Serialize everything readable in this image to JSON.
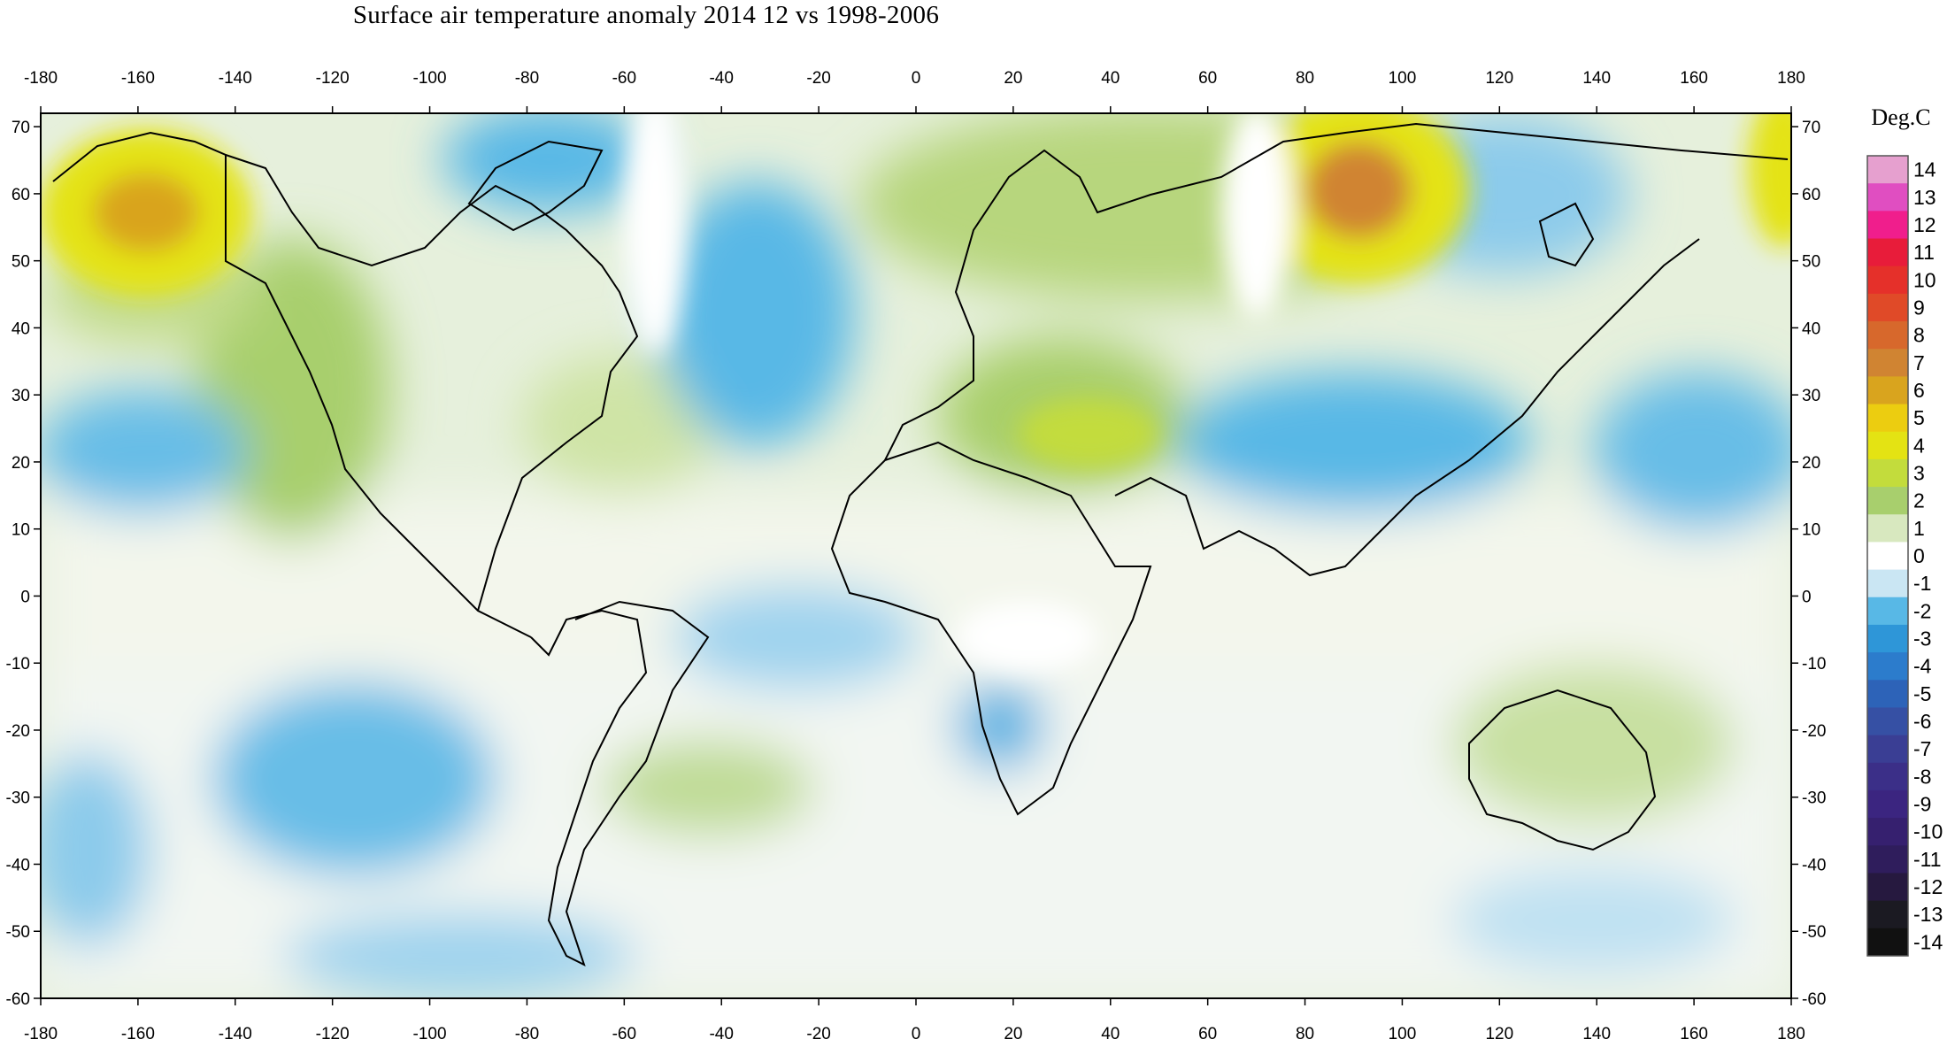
{
  "title": "Surface air temperature anomaly 2014 12 vs 1998-2006",
  "colorbar": {
    "unit_label": "Deg.C",
    "levels": [
      14,
      13,
      12,
      11,
      10,
      9,
      8,
      7,
      6,
      5,
      4,
      3,
      2,
      1,
      0,
      -1,
      -2,
      -3,
      -4,
      -5,
      -6,
      -7,
      -8,
      -9,
      -10,
      -11,
      -12,
      -13,
      -14
    ],
    "colors": [
      "#e6a0cf",
      "#e04ec1",
      "#f01e8c",
      "#e81c3a",
      "#e5302a",
      "#e04a28",
      "#d7682c",
      "#d08432",
      "#d9a41e",
      "#eccd10",
      "#e4e313",
      "#c3dc3c",
      "#a8cf6d",
      "#d8e8bf",
      "#ffffff",
      "#cae6f3",
      "#58b8e6",
      "#2e96d8",
      "#2c7ccc",
      "#2d63b8",
      "#3650a4",
      "#3a3e94",
      "#3b2f88",
      "#3b2580",
      "#36206f",
      "#2f1d5c",
      "#26193f",
      "#1b1a22",
      "#111111"
    ]
  },
  "axes": {
    "lon_ticks": [
      -180,
      -160,
      -140,
      -120,
      -100,
      -80,
      -60,
      -40,
      -20,
      0,
      20,
      40,
      60,
      80,
      100,
      120,
      140,
      160,
      180
    ],
    "lat_ticks": [
      70,
      60,
      50,
      40,
      30,
      20,
      10,
      0,
      -10,
      -20,
      -30,
      -40,
      -50,
      -60
    ],
    "lon_range": [
      -180,
      180
    ],
    "lat_range": [
      -60,
      72
    ]
  },
  "anomaly_features": [
    {
      "name": "Alaska warm",
      "lon": -155,
      "lat": 57,
      "value": 5
    },
    {
      "name": "Central Siberia warm",
      "lon": 90,
      "lat": 58,
      "value": 6
    },
    {
      "name": "Far east Siberia warm",
      "lon": 178,
      "lat": 57,
      "value": 3
    },
    {
      "name": "Western North America warm",
      "lon": -115,
      "lat": 30,
      "value": 2
    },
    {
      "name": "Middle East warm",
      "lon": 40,
      "lat": 28,
      "value": 2
    },
    {
      "name": "Eurasia warm",
      "lon": 40,
      "lat": 55,
      "value": 2
    },
    {
      "name": "Australia warm",
      "lon": 135,
      "lat": -25,
      "value": 1
    },
    {
      "name": "South Atlantic warm",
      "lon": -40,
      "lat": -33,
      "value": 1
    },
    {
      "name": "North Atlantic cold",
      "lon": -35,
      "lat": 38,
      "value": -2
    },
    {
      "name": "Greenland cold",
      "lon": -40,
      "lat": 65,
      "value": -2
    },
    {
      "name": "East Asia cold",
      "lon": 105,
      "lat": 28,
      "value": -2
    },
    {
      "name": "Western Pacific cold",
      "lon": 160,
      "lat": 25,
      "value": -2
    },
    {
      "name": "East Pacific cold",
      "lon": -165,
      "lat": 22,
      "value": -2
    },
    {
      "name": "South Pacific cold",
      "lon": -95,
      "lat": -28,
      "value": -2
    },
    {
      "name": "Southern Africa cold",
      "lon": 17,
      "lat": -18,
      "value": -3
    },
    {
      "name": "Southwest Pacific cold",
      "lon": -170,
      "lat": -38,
      "value": -1
    }
  ]
}
